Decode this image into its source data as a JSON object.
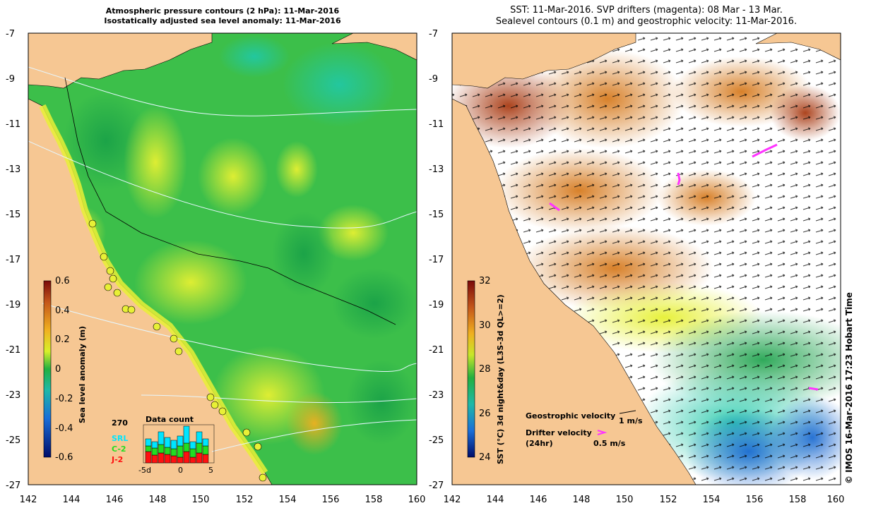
{
  "left_panel": {
    "title_line1": "Atmospheric pressure contours (2 hPa): 11-Mar-2016",
    "title_line2": "Isostatically adjusted sea level anomaly: 11-Mar-2016",
    "colorbar_label": "Sea level anomaly (m)",
    "colorbar_ticks": [
      "0.6",
      "0.4",
      "0.2",
      "0",
      "-0.2",
      "-0.4",
      "-0.6"
    ],
    "data_count": {
      "title": "Data count",
      "ymax_label": "270",
      "legend": [
        {
          "label": "SRL",
          "color": "#00e5ff"
        },
        {
          "label": "C-2",
          "color": "#22dd22"
        },
        {
          "label": "J-2",
          "color": "#ff1111"
        }
      ],
      "xtick_labels": [
        "-5d",
        "0",
        "5"
      ]
    }
  },
  "right_panel": {
    "title_line1": "SST: 11-Mar-2016. SVP drifters (magenta): 08 Mar - 13 Mar.",
    "title_line2": "Sealevel contours (0.1 m) and geostrophic velocity: 11-Mar-2016.",
    "colorbar_label": "SST (°C) 3d night&day (L3S-3d QL>=2)",
    "colorbar_ticks": [
      "32",
      "30",
      "28",
      "26",
      "24"
    ],
    "geostrophic_label": "Geostrophic velocity",
    "geostrophic_scale": "1 m/s",
    "drifter_label_line1": "Drifter velocity",
    "drifter_label_line2": "(24hr)",
    "drifter_scale": "0.5 m/s",
    "credit": "© IMOS 16-Mar-2016 17:23 Hobart Time"
  },
  "axes": {
    "lon_ticks": [
      "142",
      "144",
      "146",
      "148",
      "150",
      "152",
      "154",
      "156",
      "158",
      "160"
    ],
    "lat_ticks": [
      "-7",
      "-9",
      "-11",
      "-13",
      "-15",
      "-17",
      "-19",
      "-21",
      "-23",
      "-25",
      "-27"
    ]
  },
  "colors": {
    "land": "#f6c793",
    "ocean_base": "#3cbf4a",
    "sst_warm": "#c76a1f",
    "drifter": "#ff33ff"
  }
}
